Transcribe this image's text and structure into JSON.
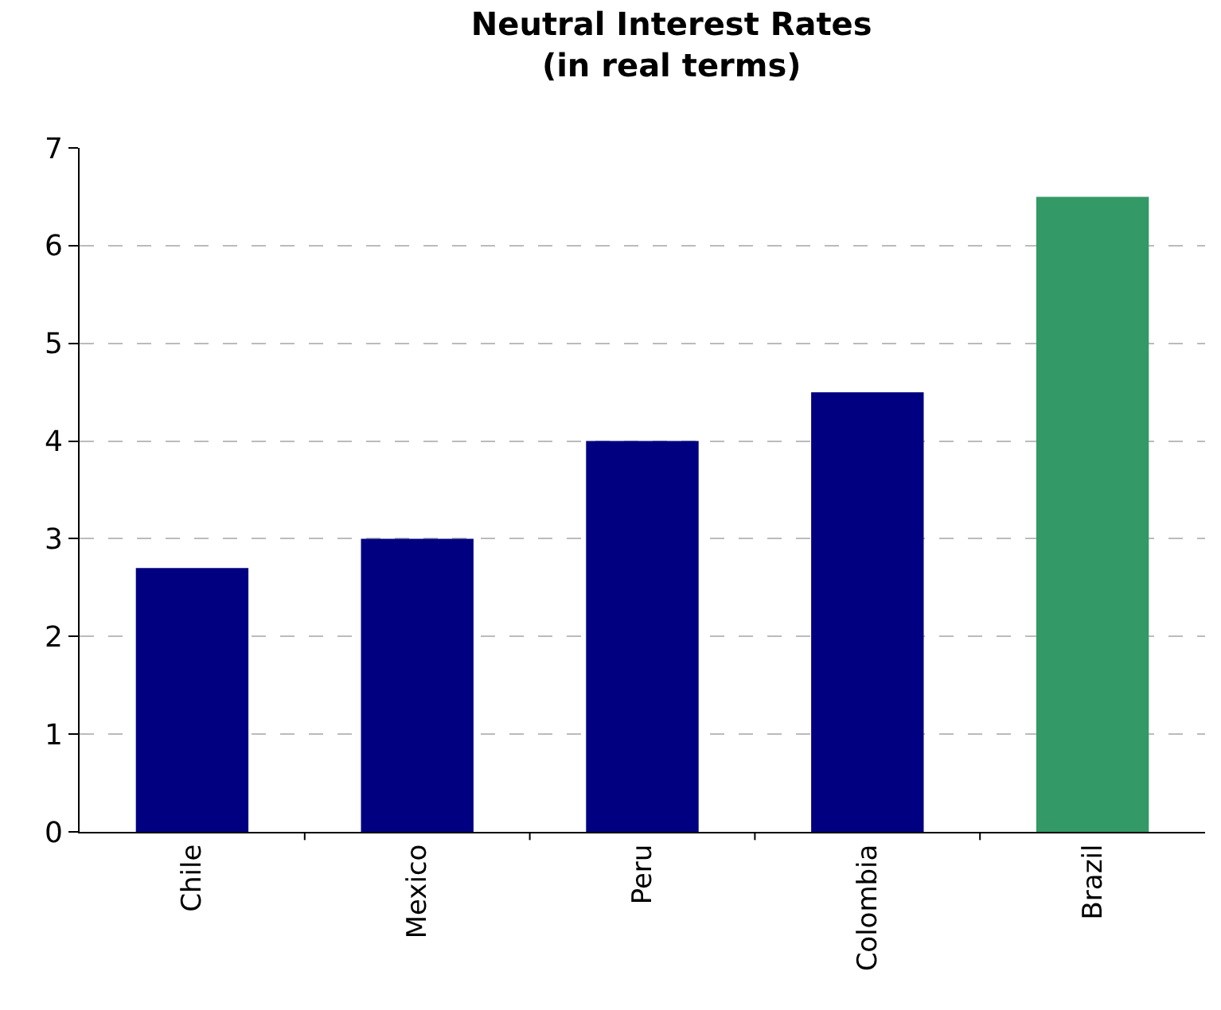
{
  "chart_data": {
    "type": "bar",
    "title": "Neutral Interest Rates\n(in real terms)",
    "categories": [
      "Chile",
      "Mexico",
      "Peru",
      "Colombia",
      "Brazil"
    ],
    "values": [
      2.7,
      3.0,
      4.0,
      4.5,
      6.5
    ],
    "colors": [
      "#000080",
      "#000080",
      "#000080",
      "#000080",
      "#339966"
    ],
    "ylim": [
      0,
      7
    ],
    "yticks": [
      0,
      1,
      2,
      3,
      4,
      5,
      6,
      7
    ],
    "grid": "y"
  }
}
